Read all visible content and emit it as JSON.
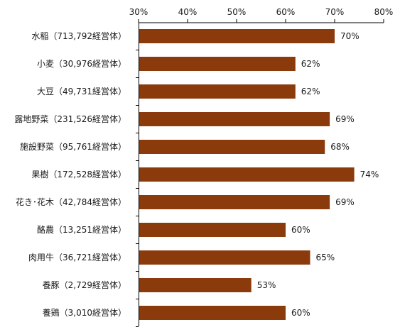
{
  "chart_data": {
    "type": "bar",
    "orientation": "horizontal",
    "title": "",
    "xlabel": "",
    "ylabel": "",
    "xlim": [
      30,
      80
    ],
    "ticks": [
      30,
      40,
      50,
      60,
      70,
      80
    ],
    "tick_labels": [
      "30%",
      "40%",
      "50%",
      "60%",
      "70%",
      "80%"
    ],
    "tick_position": "top",
    "grid": false,
    "legend": "none",
    "bar_color": "#8b3a0c",
    "categories": [
      "水稲（713,792経営体）",
      "小麦（30,976経営体）",
      "大豆（49,731経営体）",
      "露地野菜（231,526経営体）",
      "施設野菜（95,761経営体）",
      "果樹（172,528経営体）",
      "花き･花木（42,784経営体）",
      "酪農（13,251経営体）",
      "肉用牛（36,721経営体）",
      "養豚（2,729経営体）",
      "養鶏（3,010経営体）"
    ],
    "values": [
      70,
      62,
      62,
      69,
      68,
      74,
      69,
      60,
      65,
      53,
      60
    ],
    "data_labels": [
      "70%",
      "62%",
      "62%",
      "69%",
      "68%",
      "74%",
      "69%",
      "60%",
      "65%",
      "53%",
      "60%"
    ]
  }
}
